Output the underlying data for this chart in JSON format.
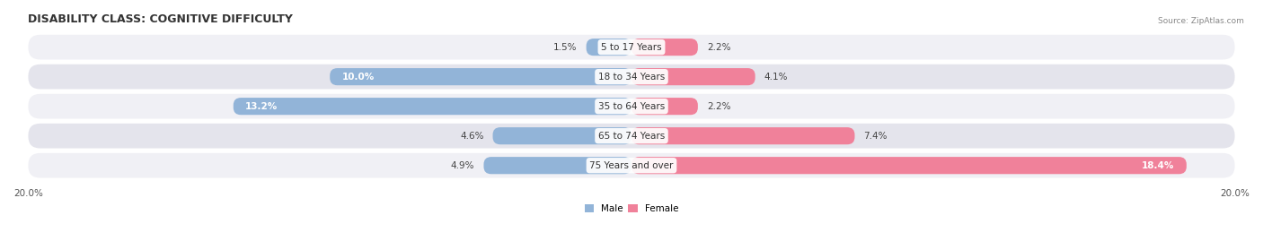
{
  "title": "DISABILITY CLASS: COGNITIVE DIFFICULTY",
  "source": "Source: ZipAtlas.com",
  "categories": [
    "5 to 17 Years",
    "18 to 34 Years",
    "35 to 64 Years",
    "65 to 74 Years",
    "75 Years and over"
  ],
  "male_values": [
    1.5,
    10.0,
    13.2,
    4.6,
    4.9
  ],
  "female_values": [
    2.2,
    4.1,
    2.2,
    7.4,
    18.4
  ],
  "max_val": 20.0,
  "male_color": "#92b4d8",
  "female_color": "#f0819a",
  "male_label": "Male",
  "female_label": "Female",
  "row_bg_colors": [
    "#f0f0f5",
    "#e4e4ec"
  ],
  "title_fontsize": 9,
  "label_fontsize": 7.5,
  "axis_label_fontsize": 7.5,
  "category_fontsize": 7.5
}
